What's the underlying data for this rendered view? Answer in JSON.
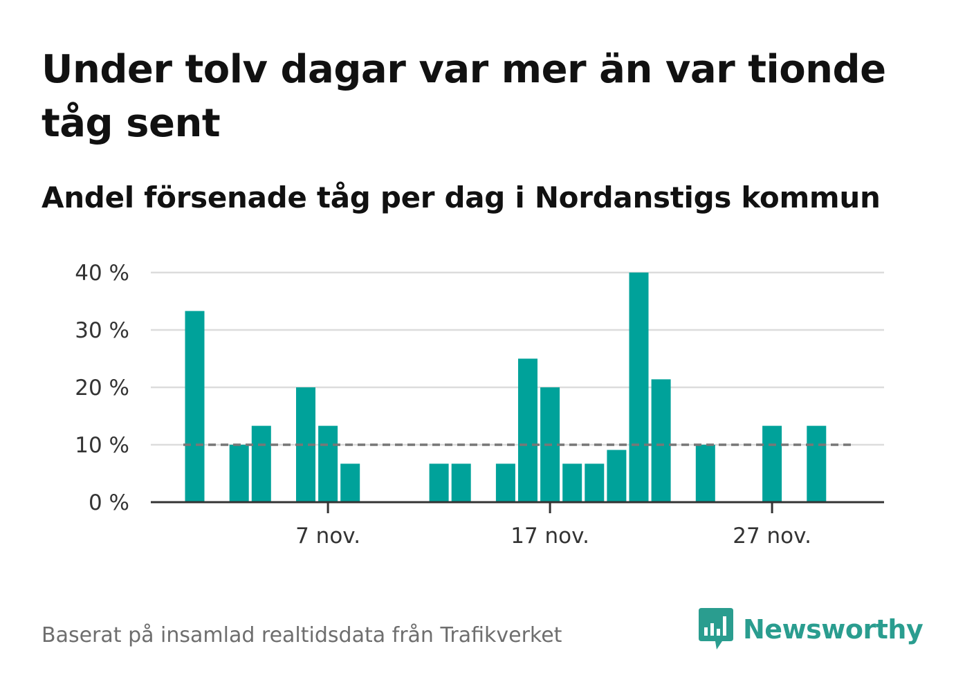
{
  "title": "Under tolv dagar var mer än var tionde tåg sent",
  "subtitle": "Andel försenade tåg per dag i Nordanstigs kommun",
  "source": "Baserat på insamlad realtidsdata från Trafikverket",
  "logo": {
    "text": "Newsworthy",
    "icon": "newsworthy-bar-chart-icon"
  },
  "colors": {
    "bar": "#00a29a",
    "grid": "#dcdcdc",
    "axis": "#333333",
    "reference_line": "#777777",
    "logo": "#2a9d8f",
    "text": "#111111",
    "muted_text": "#6e6e6e"
  },
  "chart_data": {
    "type": "bar",
    "title": "Under tolv dagar var mer än var tionde tåg sent",
    "subtitle": "Andel försenade tåg per dag i Nordanstigs kommun",
    "xlabel": "",
    "ylabel": "",
    "ylim": [
      0,
      40
    ],
    "unit": "%",
    "yticks": [
      0,
      10,
      20,
      30,
      40
    ],
    "ytick_labels": [
      "0 %",
      "10 %",
      "20 %",
      "30 %",
      "40 %"
    ],
    "xtick_labels": [
      "7 nov.",
      "17 nov.",
      "27 nov."
    ],
    "xtick_days": [
      7,
      17,
      27
    ],
    "grid": true,
    "x": [
      1,
      2,
      3,
      4,
      5,
      6,
      7,
      8,
      9,
      10,
      11,
      12,
      13,
      14,
      15,
      16,
      17,
      18,
      19,
      20,
      21,
      22,
      23,
      24,
      25,
      26,
      27,
      28,
      29
    ],
    "values": [
      33.3,
      0,
      10,
      13.3,
      0,
      20,
      13.3,
      6.7,
      0,
      0,
      0,
      6.7,
      6.7,
      0,
      6.7,
      25,
      20,
      6.7,
      6.7,
      9.1,
      40,
      21.4,
      0,
      10,
      0,
      0,
      13.3,
      0,
      13.3
    ],
    "reference_line": {
      "value": 10,
      "style": "dashed"
    }
  }
}
